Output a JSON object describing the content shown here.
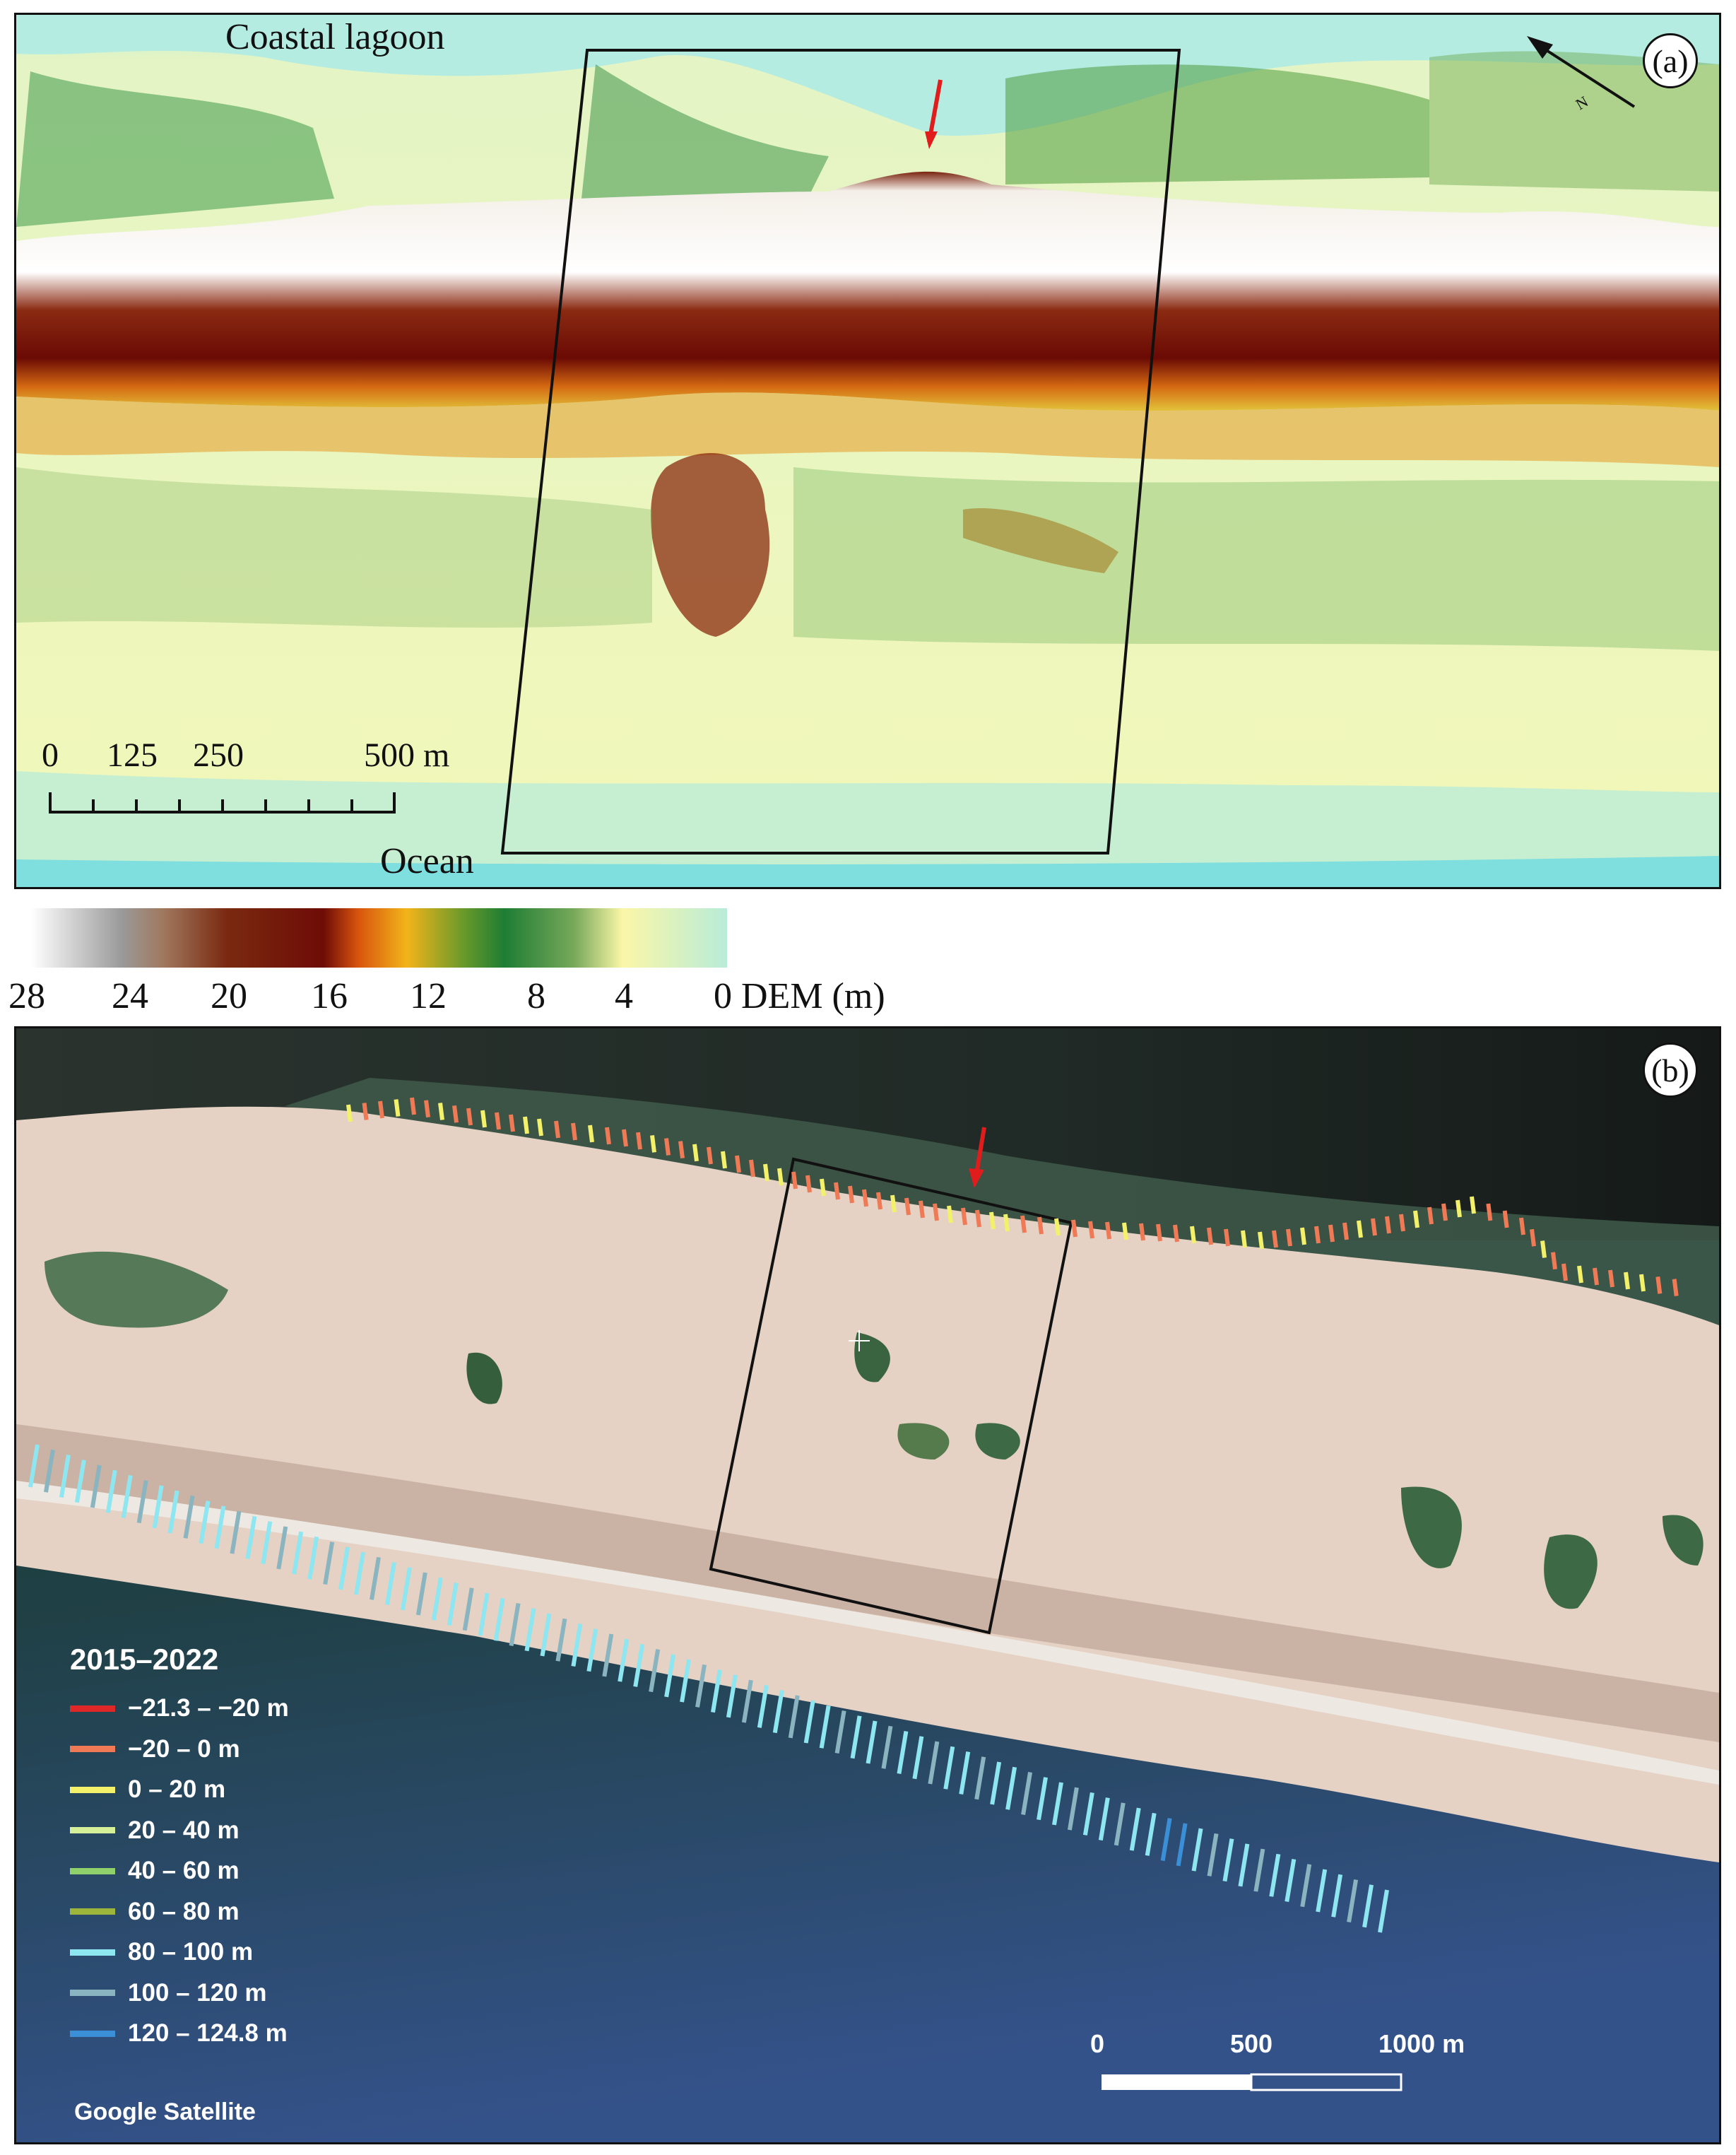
{
  "panel_a": {
    "letter": "(a)",
    "label_lagoon": "Coastal lagoon",
    "label_ocean": "Ocean",
    "scalebar_ticks": [
      "0",
      "125",
      "250",
      "500 m"
    ],
    "north_letter": "N"
  },
  "colorbar": {
    "ticks": [
      "28",
      "24",
      "20",
      "16",
      "12",
      "8",
      "4",
      "0 DEM (m)"
    ]
  },
  "panel_b": {
    "letter": "(b)",
    "legend": {
      "title": "2015–2022",
      "items": [
        {
          "label": "−21.3 – −20 m",
          "color": "#e02828"
        },
        {
          "label": "−20 – 0 m",
          "color": "#ef7a55"
        },
        {
          "label": "0 – 20 m",
          "color": "#f3f06a"
        },
        {
          "label": "20 – 40 m",
          "color": "#d6f09a"
        },
        {
          "label": "40 – 60 m",
          "color": "#8fd06a"
        },
        {
          "label": "60 – 80 m",
          "color": "#9cb53a"
        },
        {
          "label": "80 – 100 m",
          "color": "#8ee6f0"
        },
        {
          "label": "100 – 120 m",
          "color": "#8ab5c0"
        },
        {
          "label": "120 – 124.8 m",
          "color": "#3b8fd6"
        }
      ]
    },
    "scalebar_ticks": [
      "0",
      "500",
      "1000 m"
    ],
    "credit": "Google Satellite"
  }
}
